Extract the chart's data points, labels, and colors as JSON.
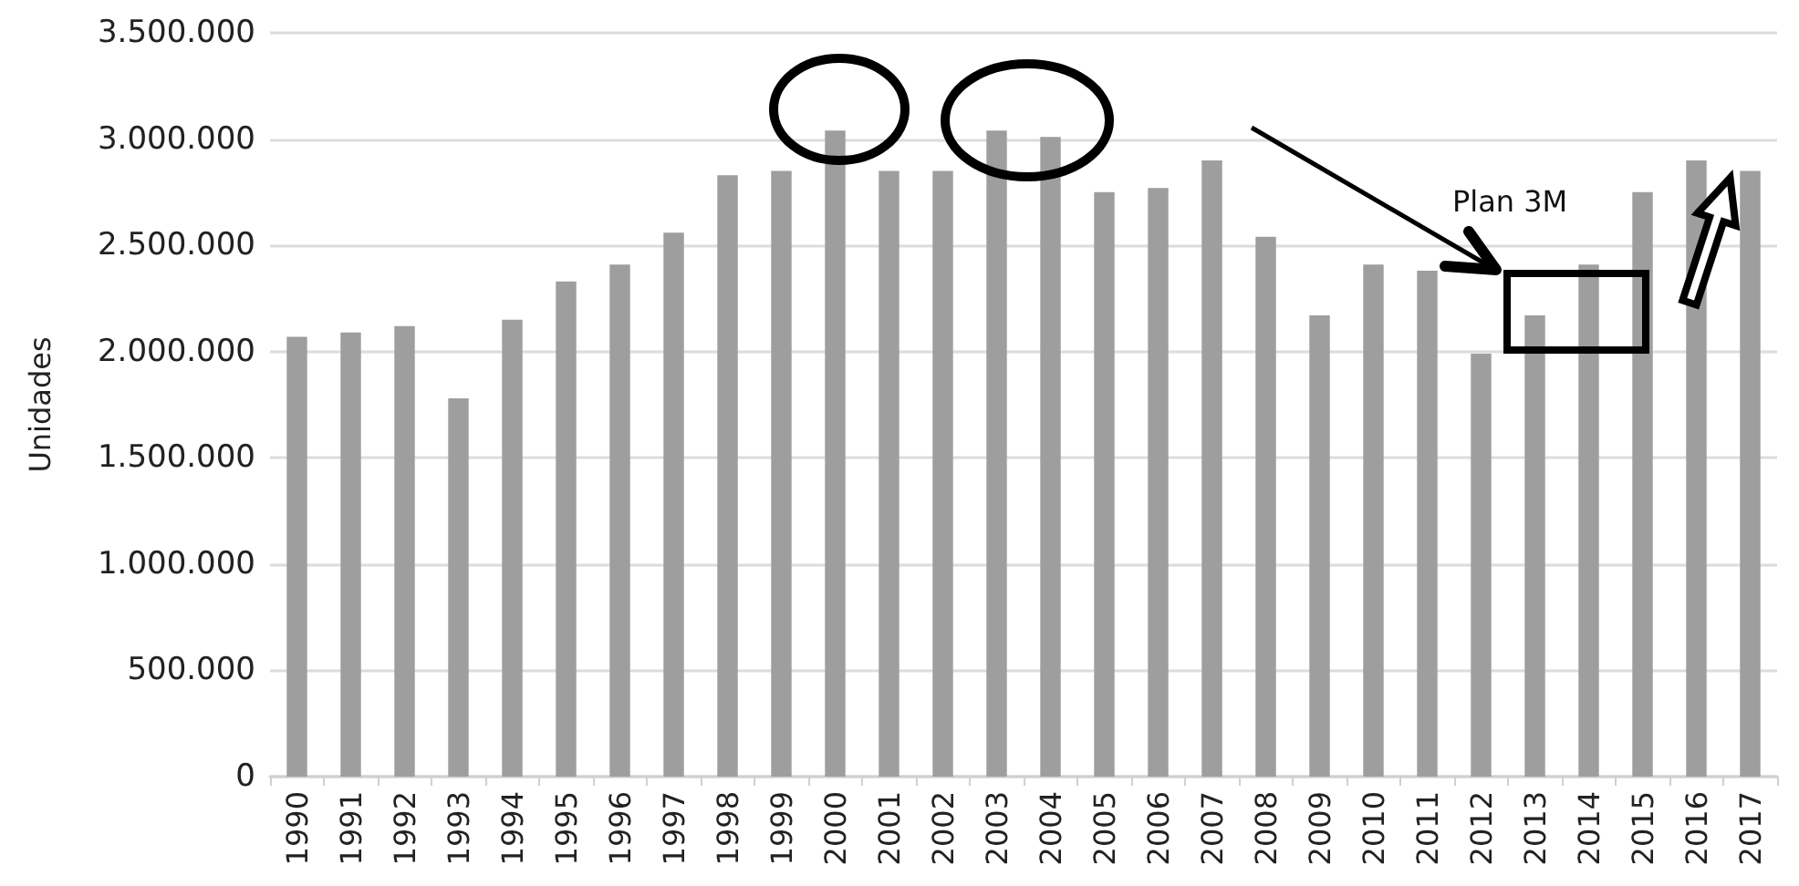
{
  "chart_data": {
    "type": "bar",
    "ylabel": "Unidades",
    "categories": [
      "1990",
      "1991",
      "1992",
      "1993",
      "1994",
      "1995",
      "1996",
      "1997",
      "1998",
      "1999",
      "2000",
      "2001",
      "2002",
      "2003",
      "2004",
      "2005",
      "2006",
      "2007",
      "2008",
      "2009",
      "2010",
      "2011",
      "2012",
      "2013",
      "2014",
      "2015",
      "2016",
      "2017"
    ],
    "values": [
      2070000,
      2090000,
      2120000,
      1780000,
      2150000,
      2330000,
      2410000,
      2560000,
      2830000,
      2850000,
      3040000,
      2850000,
      2850000,
      3040000,
      3010000,
      2750000,
      2770000,
      2900000,
      2540000,
      2170000,
      2410000,
      2380000,
      1990000,
      2170000,
      2410000,
      2750000,
      2900000,
      2850000
    ],
    "color": "#9e9e9e",
    "ylim": [
      0,
      3500000
    ],
    "yticks": [
      {
        "value": 0,
        "label": "0"
      },
      {
        "value": 500000,
        "label": "500.000"
      },
      {
        "value": 1000000,
        "label": "1.000.000"
      },
      {
        "value": 1500000,
        "label": "1.500.000"
      },
      {
        "value": 2000000,
        "label": "2.000.000"
      },
      {
        "value": 2500000,
        "label": "2.500.000"
      },
      {
        "value": 3000000,
        "label": "3.000.000"
      },
      {
        "value": 3500000,
        "label": "3.500.000"
      }
    ],
    "grid": "y",
    "annotations": [
      "Plan 3M"
    ]
  }
}
